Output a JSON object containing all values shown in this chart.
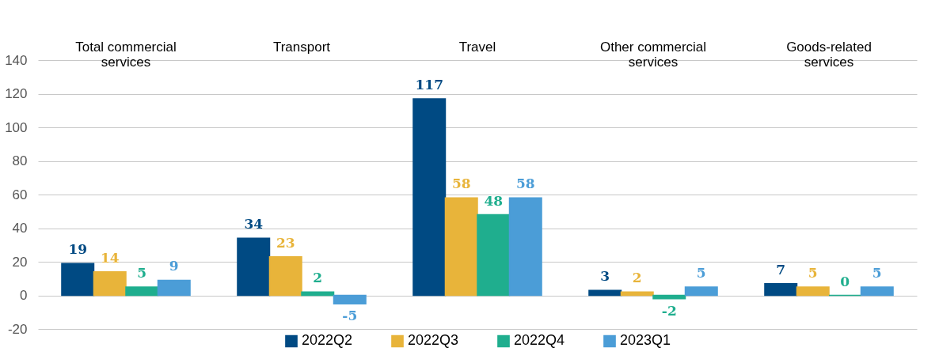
{
  "chart_data": {
    "type": "bar",
    "categories": [
      "Total commercial services",
      "Transport",
      "Travel",
      "Other commercial services",
      "Goods-related services"
    ],
    "series": [
      {
        "name": "2022Q2",
        "color": "#004a83",
        "values": [
          19,
          34,
          117,
          3,
          7
        ]
      },
      {
        "name": "2022Q3",
        "color": "#e8b43a",
        "values": [
          14,
          23,
          58,
          2,
          5
        ]
      },
      {
        "name": "2022Q4",
        "color": "#1fae8e",
        "values": [
          5,
          2,
          48,
          -2,
          0
        ]
      },
      {
        "name": "2023Q1",
        "color": "#4b9dd7",
        "values": [
          9,
          -5,
          58,
          5,
          5
        ]
      }
    ],
    "ylim": [
      -20,
      140
    ],
    "yticks": [
      -20,
      0,
      20,
      40,
      60,
      80,
      100,
      120,
      140
    ],
    "grid": "y",
    "legend": "bottom",
    "data_labels": true
  }
}
